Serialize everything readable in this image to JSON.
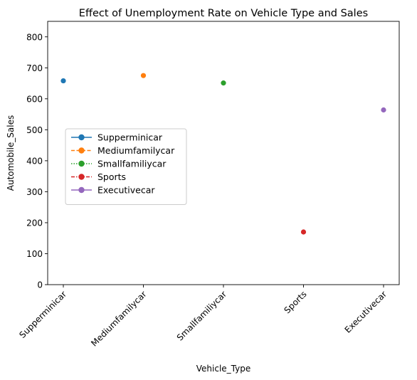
{
  "chart_data": {
    "type": "scatter",
    "title": "Effect of Unemployment Rate on Vehicle Type and Sales",
    "xlabel": "Vehicle_Type",
    "ylabel": "Automobile_Sales",
    "categories": [
      "Supperminicar",
      "Mediumfamilycar",
      "Smallfamiliycar",
      "Sports",
      "Executivecar"
    ],
    "ylim": [
      0,
      850
    ],
    "yticks": [
      "0",
      "100",
      "200",
      "300",
      "400",
      "500",
      "600",
      "700",
      "800"
    ],
    "grid": false,
    "legend_placement": "center-left",
    "series": [
      {
        "name": "Supperminicar",
        "category": "Supperminicar",
        "value": 658,
        "color": "#1f77b4",
        "linestyle": "solid"
      },
      {
        "name": "Mediumfamilycar",
        "category": "Mediumfamilycar",
        "value": 675,
        "color": "#ff7f0e",
        "linestyle": "dashed"
      },
      {
        "name": "Smallfamiliycar",
        "category": "Smallfamiliycar",
        "value": 651,
        "color": "#2ca02c",
        "linestyle": "dotted"
      },
      {
        "name": "Sports",
        "category": "Sports",
        "value": 170,
        "color": "#d62728",
        "linestyle": "dashdot"
      },
      {
        "name": "Executivecar",
        "category": "Executivecar",
        "value": 564,
        "color": "#9467bd",
        "linestyle": "solid"
      }
    ]
  }
}
